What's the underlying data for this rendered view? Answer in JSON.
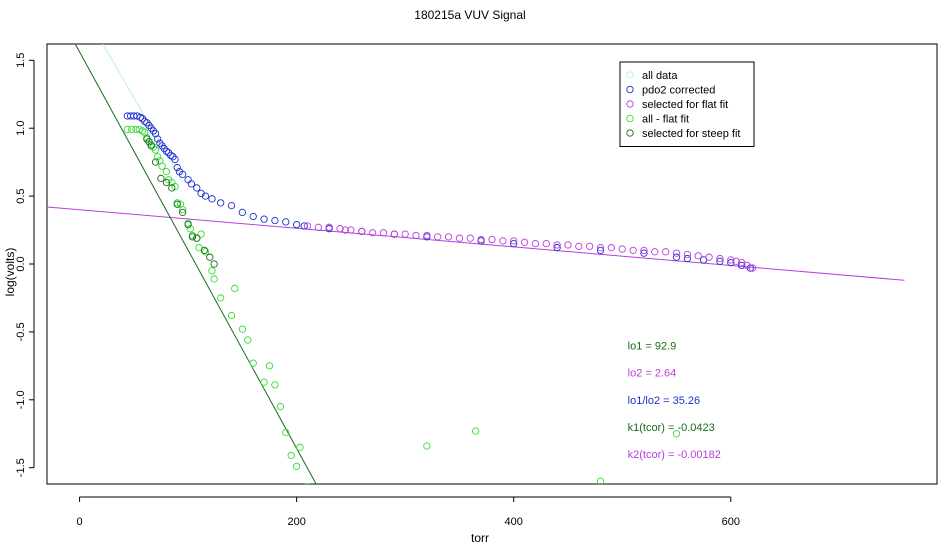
{
  "chart_data": {
    "type": "scatter",
    "title": "180215a   VUV Signal",
    "xlabel": "torr",
    "ylabel": "log(volts)",
    "xlim": [
      -30,
      790
    ],
    "ylim": [
      -1.62,
      1.62
    ],
    "xticks": [
      0,
      200,
      400,
      600
    ],
    "xtick_labels": [
      "0",
      "200",
      "400",
      "600"
    ],
    "yticks": [
      -1.5,
      -1.0,
      -0.5,
      0.0,
      0.5,
      1.0,
      1.5
    ],
    "ytick_labels": [
      "-1.5",
      "-1.0",
      "-0.5",
      "0.0",
      "0.5",
      "1.0",
      "1.5"
    ],
    "grid": false,
    "legend_position": "top-right",
    "colors": {
      "all_data": "#b8f0e0",
      "pdo2_corrected": "#1f2fd0",
      "flat_fit": "#b83fdb",
      "all_minus_flat": "#33dd33",
      "steep_fit": "#1a6b1a"
    },
    "legend": [
      {
        "label": "all data",
        "color": "#b8f0e0"
      },
      {
        "label": "pdo2 corrected",
        "color": "#1f2fd0"
      },
      {
        "label": "selected for flat fit",
        "color": "#b83fdb"
      },
      {
        "label": "all - flat fit",
        "color": "#33dd33"
      },
      {
        "label": "selected for steep fit",
        "color": "#1a6b1a"
      }
    ],
    "series": [
      {
        "name": "pdo2 corrected",
        "color": "#1f2fd0",
        "points": [
          [
            44,
            1.09
          ],
          [
            47,
            1.09
          ],
          [
            50,
            1.09
          ],
          [
            53,
            1.09
          ],
          [
            56,
            1.08
          ],
          [
            58,
            1.07
          ],
          [
            60,
            1.05
          ],
          [
            62,
            1.04
          ],
          [
            64,
            1.02
          ],
          [
            66,
            1.0
          ],
          [
            68,
            0.98
          ],
          [
            70,
            0.96
          ],
          [
            72,
            0.92
          ],
          [
            74,
            0.89
          ],
          [
            76,
            0.87
          ],
          [
            78,
            0.85
          ],
          [
            80,
            0.83
          ],
          [
            82,
            0.82
          ],
          [
            84,
            0.8
          ],
          [
            86,
            0.79
          ],
          [
            88,
            0.77
          ],
          [
            90,
            0.71
          ],
          [
            92,
            0.68
          ],
          [
            95,
            0.66
          ],
          [
            100,
            0.62
          ],
          [
            103,
            0.59
          ],
          [
            108,
            0.56
          ],
          [
            112,
            0.52
          ],
          [
            116,
            0.5
          ],
          [
            122,
            0.48
          ],
          [
            130,
            0.45
          ],
          [
            140,
            0.43
          ],
          [
            150,
            0.38
          ],
          [
            160,
            0.35
          ],
          [
            170,
            0.33
          ],
          [
            180,
            0.32
          ],
          [
            190,
            0.31
          ],
          [
            200,
            0.29
          ],
          [
            207,
            0.28
          ],
          [
            230,
            0.26
          ],
          [
            260,
            0.24
          ],
          [
            290,
            0.22
          ],
          [
            320,
            0.2
          ],
          [
            370,
            0.17
          ],
          [
            400,
            0.15
          ],
          [
            440,
            0.12
          ],
          [
            480,
            0.1
          ],
          [
            520,
            0.08
          ],
          [
            550,
            0.05
          ],
          [
            560,
            0.04
          ],
          [
            575,
            0.03
          ],
          [
            590,
            0.02
          ],
          [
            600,
            0.01
          ],
          [
            610,
            -0.01
          ],
          [
            618,
            -0.03
          ]
        ]
      },
      {
        "name": "selected for flat fit",
        "color": "#b83fdb",
        "points": [
          [
            210,
            0.28
          ],
          [
            220,
            0.27
          ],
          [
            230,
            0.27
          ],
          [
            240,
            0.26
          ],
          [
            245,
            0.25
          ],
          [
            250,
            0.25
          ],
          [
            260,
            0.24
          ],
          [
            270,
            0.23
          ],
          [
            280,
            0.23
          ],
          [
            290,
            0.22
          ],
          [
            300,
            0.22
          ],
          [
            310,
            0.21
          ],
          [
            320,
            0.21
          ],
          [
            330,
            0.2
          ],
          [
            340,
            0.2
          ],
          [
            350,
            0.19
          ],
          [
            360,
            0.19
          ],
          [
            370,
            0.18
          ],
          [
            380,
            0.18
          ],
          [
            390,
            0.17
          ],
          [
            400,
            0.17
          ],
          [
            410,
            0.16
          ],
          [
            420,
            0.15
          ],
          [
            430,
            0.15
          ],
          [
            440,
            0.14
          ],
          [
            450,
            0.14
          ],
          [
            460,
            0.13
          ],
          [
            470,
            0.13
          ],
          [
            480,
            0.12
          ],
          [
            490,
            0.12
          ],
          [
            500,
            0.11
          ],
          [
            510,
            0.1
          ],
          [
            520,
            0.1
          ],
          [
            530,
            0.09
          ],
          [
            540,
            0.09
          ],
          [
            550,
            0.08
          ],
          [
            560,
            0.07
          ],
          [
            570,
            0.06
          ],
          [
            580,
            0.05
          ],
          [
            590,
            0.04
          ],
          [
            600,
            0.03
          ],
          [
            605,
            0.02
          ],
          [
            610,
            0.01
          ],
          [
            615,
            -0.01
          ],
          [
            620,
            -0.03
          ]
        ]
      },
      {
        "name": "all - flat fit",
        "color": "#33dd33",
        "points": [
          [
            44,
            0.99
          ],
          [
            48,
            0.99
          ],
          [
            52,
            0.99
          ],
          [
            55,
            0.99
          ],
          [
            58,
            0.98
          ],
          [
            60,
            0.97
          ],
          [
            62,
            0.93
          ],
          [
            64,
            0.9
          ],
          [
            66,
            0.88
          ],
          [
            68,
            0.86
          ],
          [
            70,
            0.84
          ],
          [
            72,
            0.79
          ],
          [
            74,
            0.76
          ],
          [
            76,
            0.72
          ],
          [
            80,
            0.68
          ],
          [
            82,
            0.62
          ],
          [
            85,
            0.6
          ],
          [
            88,
            0.57
          ],
          [
            90,
            0.45
          ],
          [
            93,
            0.44
          ],
          [
            95,
            0.4
          ],
          [
            100,
            0.3
          ],
          [
            102,
            0.26
          ],
          [
            104,
            0.21
          ],
          [
            108,
            0.19
          ],
          [
            110,
            0.12
          ],
          [
            112,
            0.22
          ],
          [
            116,
            0.09
          ],
          [
            122,
            -0.05
          ],
          [
            124,
            -0.11
          ],
          [
            130,
            -0.25
          ],
          [
            140,
            -0.38
          ],
          [
            143,
            -0.18
          ],
          [
            150,
            -0.48
          ],
          [
            155,
            -0.56
          ],
          [
            160,
            -0.73
          ],
          [
            170,
            -0.87
          ],
          [
            175,
            -0.75
          ],
          [
            180,
            -0.89
          ],
          [
            185,
            -1.05
          ],
          [
            190,
            -1.24
          ],
          [
            195,
            -1.41
          ],
          [
            200,
            -1.49
          ],
          [
            203,
            -1.35
          ],
          [
            210,
            -1.64
          ],
          [
            215,
            -1.65
          ],
          [
            320,
            -1.34
          ],
          [
            365,
            -1.23
          ],
          [
            480,
            -1.6
          ],
          [
            550,
            -1.25
          ]
        ]
      },
      {
        "name": "selected for steep fit",
        "color": "#1a6b1a",
        "points": [
          [
            62,
            0.92
          ],
          [
            64,
            0.9
          ],
          [
            66,
            0.87
          ],
          [
            70,
            0.75
          ],
          [
            75,
            0.63
          ],
          [
            80,
            0.6
          ],
          [
            85,
            0.56
          ],
          [
            90,
            0.44
          ],
          [
            95,
            0.38
          ],
          [
            100,
            0.29
          ],
          [
            104,
            0.2
          ],
          [
            108,
            0.19
          ],
          [
            115,
            0.1
          ],
          [
            120,
            0.05
          ],
          [
            124,
            0.0
          ]
        ]
      }
    ],
    "fit_lines": [
      {
        "name": "flat fit",
        "color": "#b83fdb",
        "x": [
          -30,
          760
        ],
        "y": [
          0.42,
          -0.12
        ]
      },
      {
        "name": "steep fit",
        "color": "#1a6b1a",
        "x": [
          -30,
          220
        ],
        "y": [
          2.0,
          -1.65
        ]
      },
      {
        "name": "all data fit",
        "color": "#b8f0e0",
        "x": [
          20,
          95
        ],
        "y": [
          1.64,
          0.6
        ]
      }
    ],
    "annotations": [
      {
        "text": "lo1 = 92.9",
        "color": "#1a6b1a",
        "x": 505,
        "y": -0.6
      },
      {
        "text": "lo2 = 2.64",
        "color": "#b83fdb",
        "x": 505,
        "y": -0.8
      },
      {
        "text": "lo1/lo2 = 35.26",
        "color": "#1f2fd0",
        "x": 505,
        "y": -1.0
      },
      {
        "text": "k1(tcor) = -0.0423",
        "color": "#1a6b1a",
        "x": 505,
        "y": -1.2
      },
      {
        "text": "k2(tcor) = -0.00182",
        "color": "#b83fdb",
        "x": 505,
        "y": -1.4
      }
    ]
  }
}
